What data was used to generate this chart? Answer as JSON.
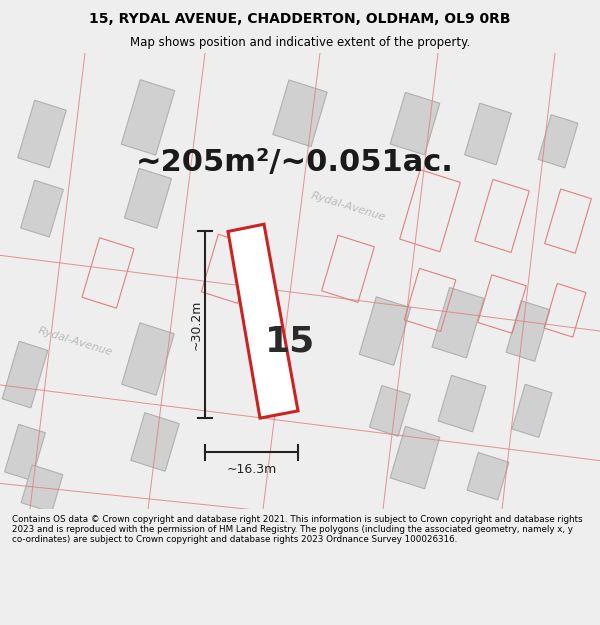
{
  "title_line1": "15, RYDAL AVENUE, CHADDERTON, OLDHAM, OL9 0RB",
  "title_line2": "Map shows position and indicative extent of the property.",
  "area_text": "~205m²/~0.051ac.",
  "number_label": "15",
  "dim_vertical": "~30.2m",
  "dim_horizontal": "~16.3m",
  "street_label_left": "Rydal-Avenue",
  "street_label_upper": "Rydal-Avenue",
  "footer_text": "Contains OS data © Crown copyright and database right 2021. This information is subject to Crown copyright and database rights 2023 and is reproduced with the permission of HM Land Registry. The polygons (including the associated geometry, namely x, y co-ordinates) are subject to Crown copyright and database rights 2023 Ordnance Survey 100026316.",
  "fig_bg": "#eeeeee",
  "map_bg": "#f5f0f0",
  "building_fill": "#d0d0d0",
  "building_edge": "#b0b0b0",
  "pink_color": "#e08080",
  "red_plot_color": "#cc2222",
  "plot_fill": "#ffffff",
  "dim_color": "#222222",
  "street_color": "#bbbbbb",
  "title_fontsize": 10,
  "subtitle_fontsize": 8.5,
  "area_fontsize": 22,
  "number_fontsize": 26,
  "dim_fontsize": 9,
  "street_fontsize": 8
}
